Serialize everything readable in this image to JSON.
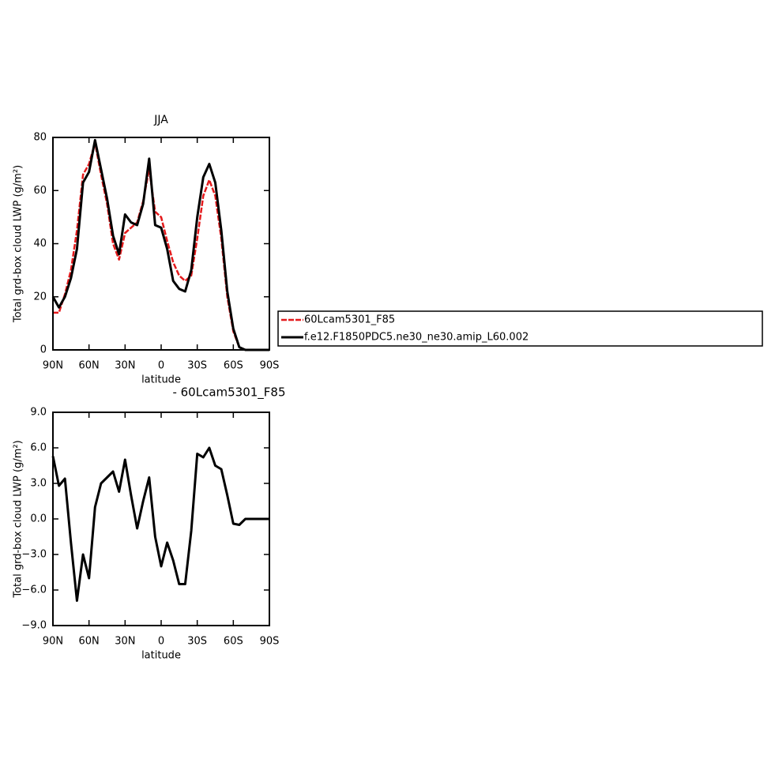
{
  "chart_data": [
    {
      "type": "line",
      "title": "JJA",
      "x_label": "latitude",
      "y_label": "Total grd-box cloud LWP (g/m²)",
      "x": [
        90,
        85,
        80,
        75,
        70,
        65,
        60,
        55,
        50,
        45,
        40,
        35,
        30,
        25,
        20,
        15,
        10,
        5,
        0,
        -5,
        -10,
        -15,
        -20,
        -25,
        -30,
        -35,
        -40,
        -45,
        -50,
        -55,
        -60,
        -65,
        -70,
        -75,
        -80,
        -85,
        -90
      ],
      "xlim": [
        90,
        -90
      ],
      "xticks": [
        {
          "value": 90,
          "label": "90N"
        },
        {
          "value": 60,
          "label": "60N"
        },
        {
          "value": 30,
          "label": "30N"
        },
        0,
        {
          "value": -30,
          "label": "30S"
        },
        {
          "value": -60,
          "label": "60S"
        },
        {
          "value": -90,
          "label": "90S"
        }
      ],
      "ylim": [
        0,
        80
      ],
      "yticks": [
        0,
        20,
        40,
        60,
        80
      ],
      "legend": "right",
      "series": [
        {
          "name": "60Lcam5301_F85",
          "color": "#e41a1c",
          "line_style": "dashed",
          "values": [
            14,
            14,
            21,
            30,
            45,
            66,
            70,
            78,
            66,
            55,
            40,
            34,
            44,
            46,
            48,
            56,
            68,
            52,
            50,
            41,
            33,
            28,
            26,
            28,
            42,
            58,
            64,
            58,
            42,
            20,
            7,
            1,
            0,
            0,
            0,
            0,
            0
          ]
        },
        {
          "name": "f.e12.F1850PDC5.ne30_ne30.amip_L60.002",
          "color": "#000000",
          "line_style": "solid",
          "values": [
            20,
            16,
            20,
            27,
            38,
            63,
            67,
            79,
            68,
            57,
            43,
            36,
            51,
            48,
            47,
            55,
            72,
            47,
            46,
            38,
            26,
            23,
            22,
            30,
            50,
            65,
            70,
            63,
            45,
            22,
            8,
            1,
            0,
            0,
            0,
            0,
            0
          ]
        }
      ]
    },
    {
      "type": "line",
      "title": "- 60Lcam5301_F85",
      "x_label": "latitude",
      "y_label": "Total grd-box cloud LWP (g/m²)",
      "x": [
        90,
        85,
        80,
        75,
        70,
        65,
        60,
        55,
        50,
        45,
        40,
        35,
        30,
        25,
        20,
        15,
        10,
        5,
        0,
        -5,
        -10,
        -15,
        -20,
        -25,
        -30,
        -35,
        -40,
        -45,
        -50,
        -55,
        -60,
        -65,
        -70,
        -75,
        -80,
        -85,
        -90
      ],
      "xlim": [
        90,
        -90
      ],
      "xticks": [
        {
          "value": 90,
          "label": "90N"
        },
        {
          "value": 60,
          "label": "60N"
        },
        {
          "value": 30,
          "label": "30N"
        },
        0,
        {
          "value": -30,
          "label": "30S"
        },
        {
          "value": -60,
          "label": "60S"
        },
        {
          "value": -90,
          "label": "90S"
        }
      ],
      "ylim": [
        -9,
        9
      ],
      "yticks": [
        {
          "value": -9,
          "label": "−9.0"
        },
        {
          "value": -6,
          "label": "−6.0"
        },
        {
          "value": -3,
          "label": "−3.0"
        },
        {
          "value": 0,
          "label": "0.0"
        },
        {
          "value": 3,
          "label": "3.0"
        },
        {
          "value": 6,
          "label": "6.0"
        },
        {
          "value": 9,
          "label": "9.0"
        }
      ],
      "series": [
        {
          "color": "#000000",
          "line_style": "solid",
          "values": [
            5.3,
            2.8,
            3.4,
            -2,
            -6.9,
            -3,
            -5,
            1,
            3,
            3.5,
            4,
            2.3,
            5,
            2,
            -0.8,
            1.5,
            3.5,
            -1.5,
            -4,
            -2,
            -3.5,
            -5.5,
            -5.5,
            -1,
            5.5,
            5.2,
            6,
            4.5,
            4.2,
            2,
            -0.4,
            -0.5,
            0,
            0,
            0,
            0,
            0
          ]
        }
      ]
    }
  ]
}
